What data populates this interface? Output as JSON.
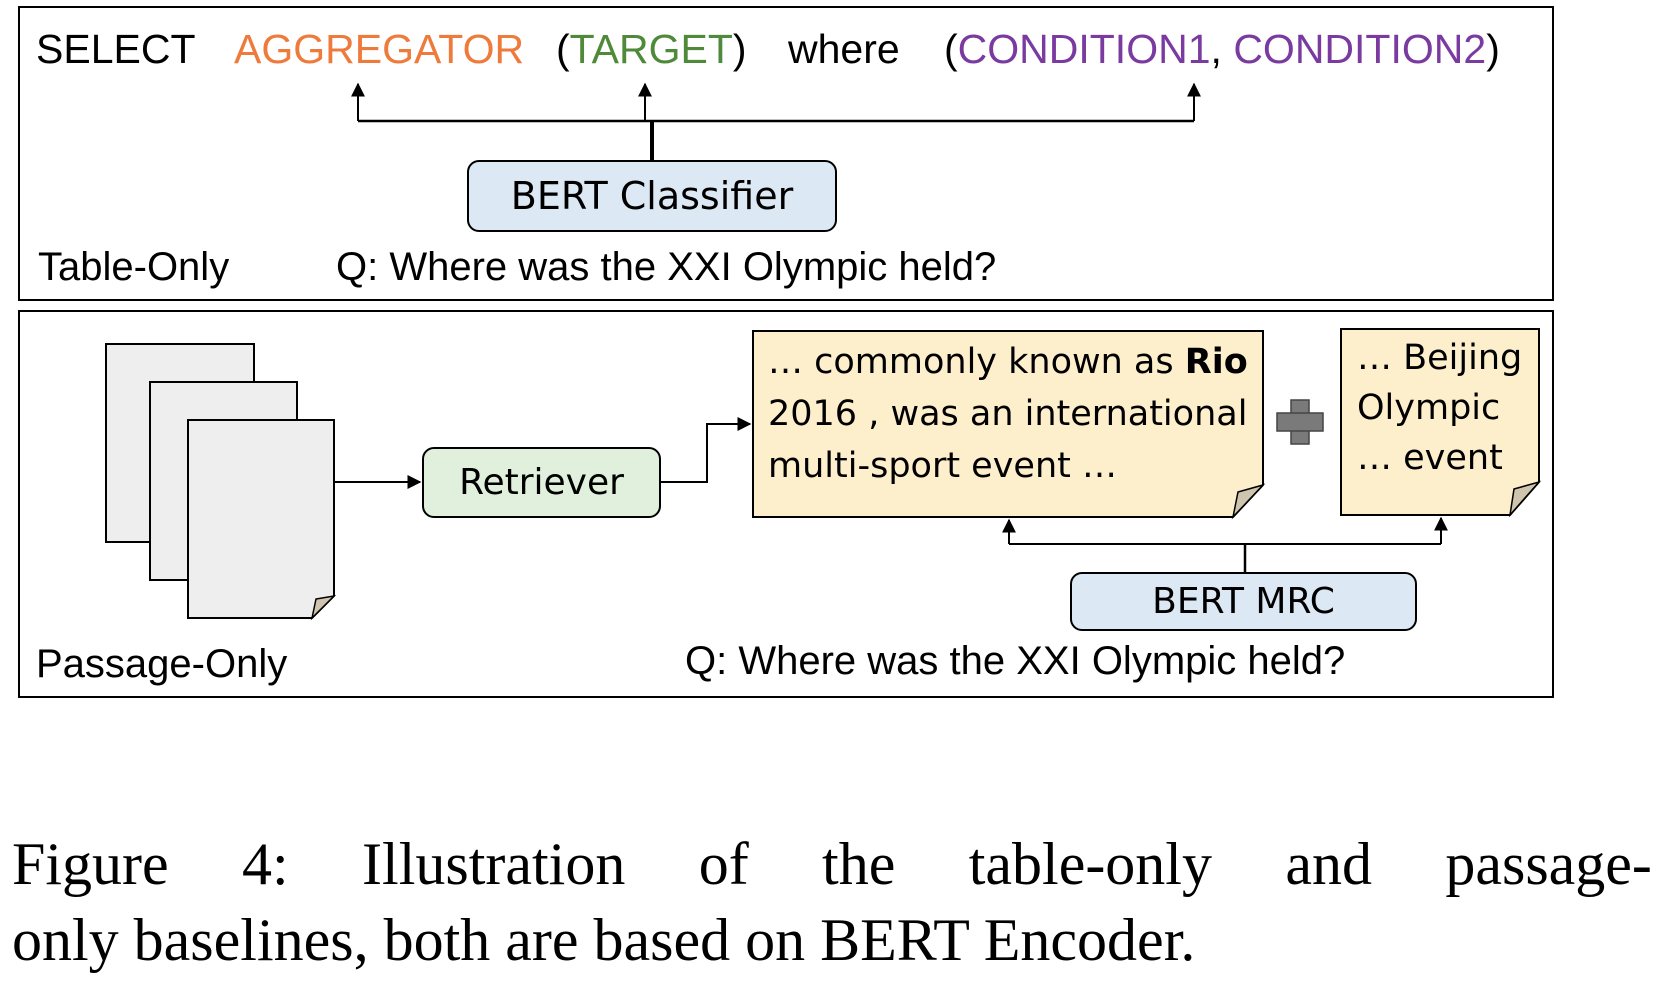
{
  "table_only": {
    "label": "Table-Only",
    "query": {
      "select": "SELECT",
      "aggregator": "AGGREGATOR",
      "target_open": "(",
      "target": "TARGET",
      "target_close": ")",
      "where": "where",
      "cond_open": "(",
      "condition1": "CONDITION1",
      "comma": ",",
      "condition2": "CONDITION2",
      "cond_close": ")"
    },
    "classifier": "BERT Classifier",
    "question": "Q: Where was the XXI Olympic held?",
    "colors": {
      "aggregator": "#ee7a3c",
      "target": "#4f8a3a",
      "condition": "#7a3aa0"
    }
  },
  "passage_only": {
    "label": "Passage-Only",
    "retriever": "Retriever",
    "passage1": {
      "line1_prefix": "… commonly known as ",
      "line1_bold": "Rio",
      "line2": "2016 , was an international",
      "line3": "multi-sport event …"
    },
    "passage2": {
      "line1": "… Beijing",
      "line2": "Olympic",
      "line3": "… event"
    },
    "reader": "BERT MRC",
    "question": "Q: Where was the XXI Olympic held?",
    "colors": {
      "classifier_fill": "#dce8f4",
      "retriever_fill": "#e1f0dc",
      "passage_fill": "#fdefcb",
      "doc_fill": "#eeeeee",
      "plus": "#7a7a7a"
    }
  },
  "caption": {
    "line1_words": [
      "Figure",
      "4:",
      "Illustration",
      "of",
      "the",
      "table-only",
      "and",
      "passage-"
    ],
    "line2": "only baselines, both are based on BERT Encoder."
  }
}
